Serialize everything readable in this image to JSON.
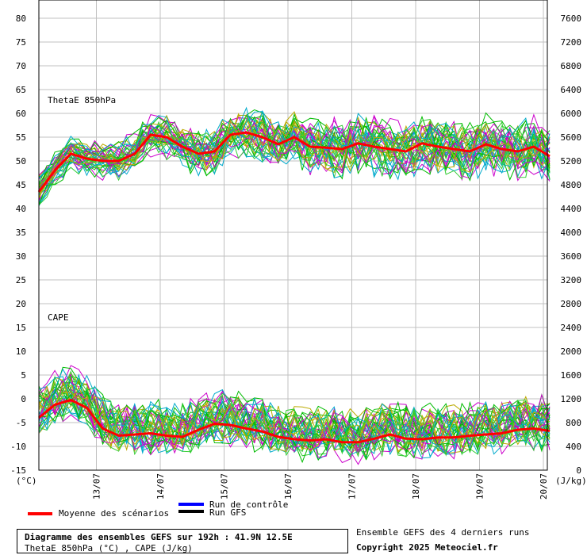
{
  "chart_data": {
    "type": "line",
    "title": "Diagramme des ensembles GEFS sur 192h : 41.9N 12.5E",
    "subtitle": "ThetaE 850hPa (°C) , CAPE (J/kg)",
    "left_unit": "(°C)",
    "right_unit": "(J/kg)",
    "left_ticks": [
      "80",
      "75",
      "70",
      "65",
      "60",
      "55",
      "50",
      "45",
      "40",
      "35",
      "30",
      "25",
      "20",
      "15",
      "10",
      "5",
      "0",
      "-5",
      "-10",
      "-15"
    ],
    "right_ticks": [
      "7600",
      "7200",
      "6800",
      "6400",
      "6000",
      "5600",
      "5200",
      "4800",
      "4400",
      "4000",
      "3600",
      "3200",
      "2800",
      "2400",
      "2000",
      "1600",
      "1200",
      "800",
      "400",
      "0"
    ],
    "x_labels": [
      "13/07",
      "14/07",
      "15/07",
      "16/07",
      "17/07",
      "18/07",
      "19/07",
      "20/07"
    ],
    "panel_labels": {
      "thetae": "ThetaE 850hPa",
      "cape": "CAPE"
    },
    "legend": {
      "mean": "Moyenne des scénarios",
      "control": "Run de contrôle",
      "gfs": "Run GFS"
    },
    "colors": {
      "mean": "#ff0000",
      "control": "#0000ff",
      "gfs": "#000000",
      "members": [
        "#00bb00",
        "#cc00cc",
        "#00aacc",
        "#bbaa00",
        "#33cc33"
      ],
      "grid": "#c0c0c0"
    },
    "thetae_mean": {
      "x_hours": [
        0,
        6,
        12,
        18,
        24,
        30,
        36,
        42,
        48,
        54,
        60,
        66,
        72,
        78,
        84,
        90,
        96,
        102,
        108,
        114,
        120,
        126,
        132,
        138,
        144,
        150,
        156,
        162,
        168,
        174,
        180,
        186,
        192
      ],
      "values": [
        43.5,
        48,
        51.5,
        50.5,
        50,
        50,
        51.5,
        55.5,
        55,
        53,
        51.5,
        52,
        55.5,
        56,
        55,
        53.5,
        55,
        53,
        52.8,
        52.5,
        53.7,
        53,
        52.5,
        52,
        53.7,
        53,
        52.5,
        52,
        53.5,
        52.5,
        52,
        53,
        51
      ]
    },
    "cape_mean_jkg": {
      "x_hours": [
        0,
        6,
        12,
        18,
        24,
        30,
        36,
        42,
        48,
        54,
        60,
        66,
        72,
        78,
        84,
        90,
        96,
        102,
        108,
        114,
        120,
        126,
        132,
        138,
        144,
        150,
        156,
        162,
        168,
        174,
        180,
        186,
        192
      ],
      "values": [
        880,
        1100,
        1180,
        1050,
        700,
        580,
        600,
        620,
        580,
        560,
        680,
        780,
        760,
        700,
        650,
        560,
        520,
        500,
        520,
        470,
        470,
        530,
        600,
        530,
        520,
        550,
        550,
        580,
        600,
        620,
        680,
        700,
        660
      ]
    }
  },
  "footer": {
    "box_title": "Diagramme des ensembles GEFS sur 192h : 41.9N 12.5E",
    "box_subtitle": "ThetaE 850hPa (°C) , CAPE (J/kg)",
    "credit_line1": "Ensemble GEFS des 4 derniers runs",
    "credit_line2": "Copyright 2025 Meteociel.fr"
  }
}
